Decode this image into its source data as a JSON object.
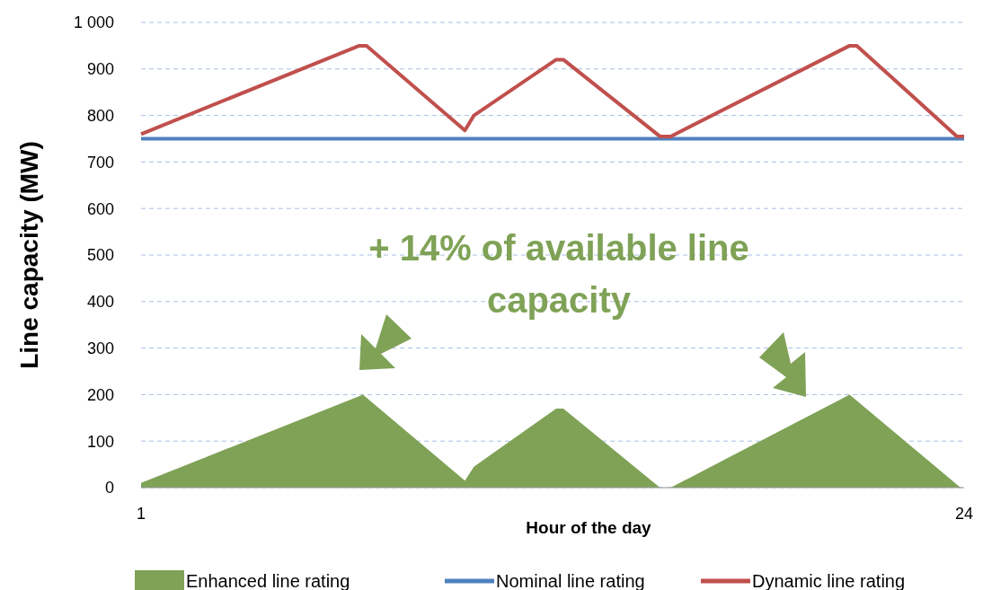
{
  "chart_data": {
    "type": "line",
    "xlabel": "Hour of the day",
    "ylabel": "Line capacity (MW)",
    "xlim": [
      1,
      24
    ],
    "xticks": [
      1,
      24
    ],
    "ylim": [
      0,
      1000
    ],
    "yticks": [
      0,
      100,
      200,
      300,
      400,
      500,
      600,
      700,
      800,
      900,
      {
        "value": 1000,
        "label": "1 000"
      }
    ],
    "grid": "y",
    "legend": "bottom",
    "line_style": "solid",
    "annotations": [
      "+ 14% of available line capacity"
    ],
    "series": [
      {
        "name": "Enhanced line rating",
        "type": "area",
        "color": "#7fa256",
        "x": [
          1,
          7.2,
          10.05,
          10.3,
          12.6,
          12.8,
          15.5,
          15.8,
          20.8,
          23.9
        ],
        "values": [
          10,
          200,
          15,
          45,
          170,
          170,
          0,
          0,
          200,
          0
        ]
      },
      {
        "name": "Nominal line rating",
        "color": "#4f81bd",
        "x": [
          1,
          24
        ],
        "values": [
          750,
          750
        ]
      },
      {
        "name": "Dynamic line rating",
        "color": "#c0504d",
        "x": [
          1,
          7.1,
          7.3,
          10.05,
          10.3,
          12.6,
          12.8,
          15.5,
          15.8,
          20.8,
          21.0,
          23.8,
          24
        ],
        "values": [
          760,
          950,
          950,
          768,
          800,
          920,
          920,
          755,
          755,
          950,
          950,
          755,
          755
        ]
      }
    ]
  }
}
